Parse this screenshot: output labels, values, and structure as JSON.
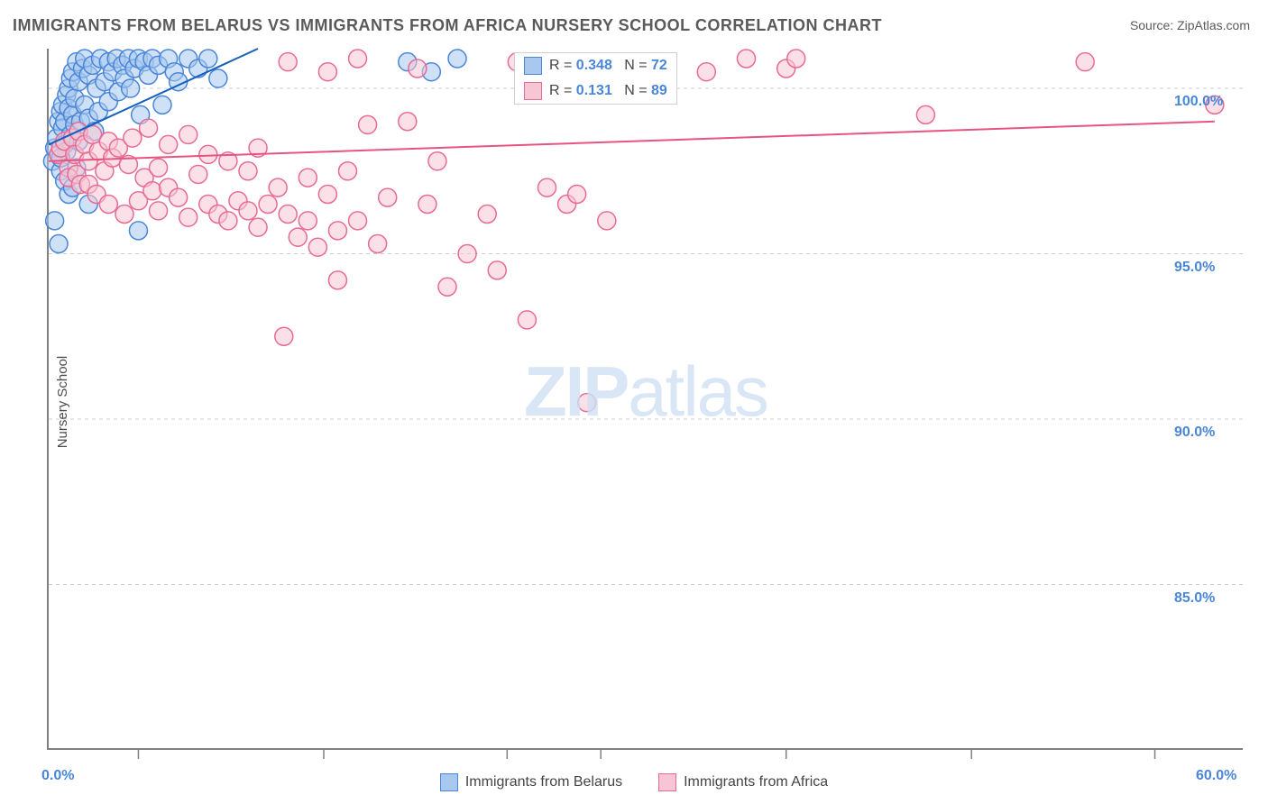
{
  "title": "IMMIGRANTS FROM BELARUS VS IMMIGRANTS FROM AFRICA NURSERY SCHOOL CORRELATION CHART",
  "source": "Source: ZipAtlas.com",
  "ylabel": "Nursery School",
  "watermark_main": "ZIP",
  "watermark_sub": "atlas",
  "chart": {
    "type": "scatter",
    "xlim": [
      0,
      60
    ],
    "ylim": [
      80,
      101.2
    ],
    "yticks": [
      {
        "v": 85,
        "label": "85.0%"
      },
      {
        "v": 90,
        "label": "90.0%"
      },
      {
        "v": 95,
        "label": "95.0%"
      },
      {
        "v": 100,
        "label": "100.0%"
      }
    ],
    "xticks_minor": [
      4.5,
      13.8,
      23,
      27.7,
      37,
      46.3,
      55.5
    ],
    "xlabels": [
      {
        "v": 0,
        "label": "0.0%"
      },
      {
        "v": 60,
        "label": "60.0%"
      }
    ],
    "background_color": "#ffffff",
    "grid_color": "#cccccc",
    "axis_color": "#808080",
    "marker_radius": 10,
    "marker_stroke_width": 1.5,
    "line_width": 2,
    "series": [
      {
        "key": "belarus",
        "name": "Immigrants from Belarus",
        "fill": "#a8c8ef",
        "fill_opacity": 0.55,
        "stroke": "#4a86d8",
        "line_color": "#1560bd",
        "R": "0.348",
        "N": "72",
        "trend": {
          "x1": 0,
          "y1": 98.3,
          "x2": 10.5,
          "y2": 101.2
        },
        "points": [
          [
            0.2,
            97.8
          ],
          [
            0.3,
            98.2
          ],
          [
            0.4,
            98.5
          ],
          [
            0.5,
            99.0
          ],
          [
            0.5,
            98.0
          ],
          [
            0.6,
            99.3
          ],
          [
            0.6,
            97.5
          ],
          [
            0.7,
            98.8
          ],
          [
            0.7,
            99.5
          ],
          [
            0.8,
            98.3
          ],
          [
            0.8,
            99.0
          ],
          [
            0.9,
            99.8
          ],
          [
            0.9,
            98.1
          ],
          [
            1.0,
            99.4
          ],
          [
            1.0,
            100.0
          ],
          [
            1.1,
            98.6
          ],
          [
            1.1,
            100.3
          ],
          [
            1.2,
            99.2
          ],
          [
            1.2,
            100.5
          ],
          [
            1.3,
            98.9
          ],
          [
            1.3,
            99.7
          ],
          [
            1.4,
            100.8
          ],
          [
            1.5,
            100.2
          ],
          [
            1.5,
            98.4
          ],
          [
            1.6,
            99.0
          ],
          [
            1.7,
            100.6
          ],
          [
            1.8,
            99.5
          ],
          [
            1.8,
            100.9
          ],
          [
            2.0,
            100.4
          ],
          [
            2.0,
            99.1
          ],
          [
            2.2,
            100.7
          ],
          [
            2.3,
            98.7
          ],
          [
            2.4,
            100.0
          ],
          [
            2.5,
            99.3
          ],
          [
            2.6,
            100.9
          ],
          [
            2.8,
            100.2
          ],
          [
            3.0,
            100.8
          ],
          [
            3.0,
            99.6
          ],
          [
            3.2,
            100.5
          ],
          [
            3.4,
            100.9
          ],
          [
            3.5,
            99.9
          ],
          [
            3.7,
            100.7
          ],
          [
            3.8,
            100.3
          ],
          [
            4.0,
            100.9
          ],
          [
            4.1,
            100.0
          ],
          [
            4.3,
            100.6
          ],
          [
            4.5,
            100.9
          ],
          [
            4.6,
            99.2
          ],
          [
            4.8,
            100.8
          ],
          [
            5.0,
            100.4
          ],
          [
            5.2,
            100.9
          ],
          [
            5.5,
            100.7
          ],
          [
            5.7,
            99.5
          ],
          [
            6.0,
            100.9
          ],
          [
            6.3,
            100.5
          ],
          [
            6.5,
            100.2
          ],
          [
            7.0,
            100.9
          ],
          [
            7.5,
            100.6
          ],
          [
            8.0,
            100.9
          ],
          [
            8.5,
            100.3
          ],
          [
            0.8,
            97.2
          ],
          [
            1.0,
            96.8
          ],
          [
            1.2,
            97.0
          ],
          [
            2.0,
            96.5
          ],
          [
            0.3,
            96.0
          ],
          [
            4.5,
            95.7
          ],
          [
            0.5,
            95.3
          ],
          [
            18.0,
            100.8
          ],
          [
            19.2,
            100.5
          ],
          [
            20.5,
            100.9
          ],
          [
            0.6,
            97.9
          ],
          [
            1.4,
            97.6
          ]
        ]
      },
      {
        "key": "africa",
        "name": "Immigrants from Africa",
        "fill": "#f7c6d4",
        "fill_opacity": 0.55,
        "stroke": "#e76b95",
        "line_color": "#e75480",
        "R": "0.131",
        "N": "89",
        "trend": {
          "x1": 0,
          "y1": 97.8,
          "x2": 58.5,
          "y2": 99.0
        },
        "points": [
          [
            0.5,
            98.0
          ],
          [
            0.6,
            98.2
          ],
          [
            0.8,
            98.4
          ],
          [
            1.0,
            97.6
          ],
          [
            1.0,
            97.3
          ],
          [
            1.2,
            98.5
          ],
          [
            1.3,
            98.0
          ],
          [
            1.4,
            97.4
          ],
          [
            1.5,
            98.7
          ],
          [
            1.6,
            97.1
          ],
          [
            1.8,
            98.3
          ],
          [
            2.0,
            97.8
          ],
          [
            2.0,
            97.1
          ],
          [
            2.2,
            98.6
          ],
          [
            2.4,
            96.8
          ],
          [
            2.5,
            98.1
          ],
          [
            2.8,
            97.5
          ],
          [
            3.0,
            98.4
          ],
          [
            3.0,
            96.5
          ],
          [
            3.2,
            97.9
          ],
          [
            3.5,
            98.2
          ],
          [
            3.8,
            96.2
          ],
          [
            4.0,
            97.7
          ],
          [
            4.2,
            98.5
          ],
          [
            4.5,
            96.6
          ],
          [
            4.8,
            97.3
          ],
          [
            5.0,
            98.8
          ],
          [
            5.2,
            96.9
          ],
          [
            5.5,
            97.6
          ],
          [
            5.5,
            96.3
          ],
          [
            6.0,
            98.3
          ],
          [
            6.0,
            97.0
          ],
          [
            6.5,
            96.7
          ],
          [
            7.0,
            98.6
          ],
          [
            7.0,
            96.1
          ],
          [
            7.5,
            97.4
          ],
          [
            8.0,
            98.0
          ],
          [
            8.0,
            96.5
          ],
          [
            8.5,
            96.2
          ],
          [
            9.0,
            97.8
          ],
          [
            9.0,
            96.0
          ],
          [
            9.5,
            96.6
          ],
          [
            10.0,
            97.5
          ],
          [
            10.0,
            96.3
          ],
          [
            10.5,
            98.2
          ],
          [
            10.5,
            95.8
          ],
          [
            11.0,
            96.5
          ],
          [
            11.5,
            97.0
          ],
          [
            12.0,
            96.2
          ],
          [
            12.0,
            100.8
          ],
          [
            12.5,
            95.5
          ],
          [
            13.0,
            97.3
          ],
          [
            13.0,
            96.0
          ],
          [
            13.5,
            95.2
          ],
          [
            14.0,
            100.5
          ],
          [
            14.0,
            96.8
          ],
          [
            14.5,
            95.7
          ],
          [
            15.0,
            97.5
          ],
          [
            15.5,
            96.0
          ],
          [
            15.5,
            100.9
          ],
          [
            16.0,
            98.9
          ],
          [
            16.5,
            95.3
          ],
          [
            17.0,
            96.7
          ],
          [
            18.0,
            99.0
          ],
          [
            18.5,
            100.6
          ],
          [
            19.0,
            96.5
          ],
          [
            19.5,
            97.8
          ],
          [
            20.0,
            94.0
          ],
          [
            21.0,
            95.0
          ],
          [
            22.0,
            96.2
          ],
          [
            22.5,
            94.5
          ],
          [
            23.5,
            100.8
          ],
          [
            24.0,
            93.0
          ],
          [
            25.0,
            97.0
          ],
          [
            26.0,
            96.5
          ],
          [
            27.0,
            90.5
          ],
          [
            11.8,
            92.5
          ],
          [
            28.0,
            96.0
          ],
          [
            29.5,
            100.4
          ],
          [
            30.5,
            100.8
          ],
          [
            33.0,
            100.5
          ],
          [
            35.0,
            100.9
          ],
          [
            37.0,
            100.6
          ],
          [
            37.5,
            100.9
          ],
          [
            52.0,
            100.8
          ],
          [
            26.5,
            96.8
          ],
          [
            14.5,
            94.2
          ],
          [
            44.0,
            99.2
          ],
          [
            58.5,
            99.5
          ]
        ]
      }
    ]
  },
  "legend_top": {
    "r_label": "R =",
    "n_label": "N ="
  }
}
